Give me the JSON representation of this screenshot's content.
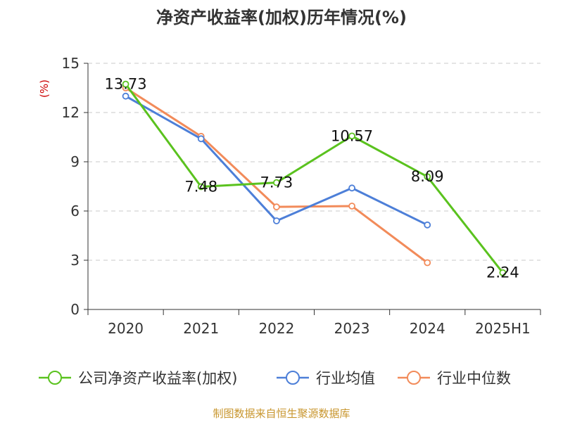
{
  "chart_data": {
    "type": "line",
    "title": "净资产收益率(加权)历年情况(%)",
    "ylabel": "(%)",
    "categories": [
      "2020",
      "2021",
      "2022",
      "2023",
      "2024",
      "2025H1"
    ],
    "ylim": [
      0,
      15
    ],
    "yticks": [
      0,
      3,
      6,
      9,
      12,
      15
    ],
    "grid": true,
    "legend_position": "bottom",
    "series": [
      {
        "name": "公司净资产收益率(加权)",
        "color": "#5ac21e",
        "values": [
          13.73,
          7.48,
          7.73,
          10.57,
          8.09,
          2.24
        ],
        "labels": [
          "13.73",
          "7.48",
          "7.73",
          "10.57",
          "8.09",
          "2.24"
        ]
      },
      {
        "name": "行业均值",
        "color": "#4d7fd8",
        "values": [
          13.0,
          10.4,
          5.4,
          7.4,
          5.15,
          null
        ]
      },
      {
        "name": "行业中位数",
        "color": "#f28b5a",
        "values": [
          13.5,
          10.55,
          6.25,
          6.3,
          2.85,
          null
        ]
      }
    ]
  },
  "footer": {
    "source": "制图数据来自恒生聚源数据库"
  }
}
